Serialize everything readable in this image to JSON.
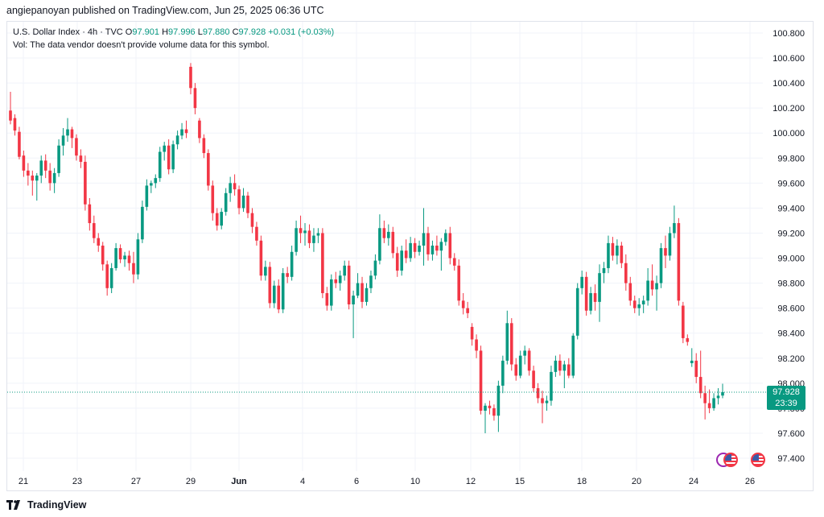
{
  "header": {
    "published_text": "angiepanoyan published on TradingView.com, Jun 25, 2025 06:36 UTC"
  },
  "legend": {
    "symbol": "U.S. Dollar Index · 4h · TVC",
    "o_label": "O",
    "o_value": "97.901",
    "h_label": "H",
    "h_value": "97.996",
    "l_label": "L",
    "l_value": "97.880",
    "c_label": "C",
    "c_value": "97.928",
    "change": "+0.031 (+0.03%)",
    "vol_text": "Vol: The data vendor doesn't provide volume data for this symbol."
  },
  "price_tag": {
    "price": "97.928",
    "countdown": "23:39"
  },
  "footer": {
    "brand": "TradingView"
  },
  "colors": {
    "up": "#089981",
    "down": "#f23645",
    "grid": "#f0f3fa",
    "accent": "#089981"
  },
  "icons": [
    "tradingview-logo-icon",
    "us-flag-icon",
    "economic-event-icon"
  ],
  "chart_data": {
    "type": "candlestick",
    "title": "U.S. Dollar Index · 4h · TVC",
    "ylim": [
      97.3,
      100.9
    ],
    "y_ticks": [
      "100.800",
      "100.600",
      "100.400",
      "100.200",
      "100.000",
      "99.800",
      "99.600",
      "99.400",
      "99.200",
      "99.000",
      "98.800",
      "98.600",
      "98.400",
      "98.200",
      "98.000",
      "97.800",
      "97.600",
      "97.400"
    ],
    "x_ticks": [
      "21",
      "23",
      "27",
      "29",
      "Jun",
      "4",
      "6",
      "10",
      "12",
      "15",
      "18",
      "20",
      "24",
      "26"
    ],
    "last_price": 97.928,
    "grid": true,
    "candles": [
      [
        100.18,
        100.33,
        100.07,
        100.1
      ],
      [
        100.12,
        100.15,
        99.98,
        100.02
      ],
      [
        100.01,
        100.05,
        99.79,
        99.81
      ],
      [
        99.82,
        99.86,
        99.65,
        99.7
      ],
      [
        99.7,
        99.76,
        99.58,
        99.66
      ],
      [
        99.66,
        99.7,
        99.5,
        99.62
      ],
      [
        99.62,
        99.68,
        99.46,
        99.66
      ],
      [
        99.66,
        99.82,
        99.6,
        99.78
      ],
      [
        99.78,
        99.83,
        99.64,
        99.7
      ],
      [
        99.7,
        99.76,
        99.54,
        99.6
      ],
      [
        99.6,
        99.72,
        99.52,
        99.68
      ],
      [
        99.68,
        99.95,
        99.65,
        99.9
      ],
      [
        99.9,
        100.04,
        99.82,
        99.98
      ],
      [
        99.98,
        100.12,
        99.93,
        100.03
      ],
      [
        100.03,
        100.05,
        99.88,
        99.96
      ],
      [
        99.96,
        99.99,
        99.78,
        99.82
      ],
      [
        99.82,
        99.87,
        99.72,
        99.77
      ],
      [
        99.77,
        99.82,
        99.38,
        99.43
      ],
      [
        99.43,
        99.48,
        99.22,
        99.28
      ],
      [
        99.28,
        99.34,
        99.12,
        99.16
      ],
      [
        99.16,
        99.2,
        99.05,
        99.1
      ],
      [
        99.1,
        99.13,
        98.9,
        98.95
      ],
      [
        98.95,
        98.98,
        98.7,
        98.76
      ],
      [
        98.76,
        98.96,
        98.72,
        98.92
      ],
      [
        98.92,
        99.12,
        98.9,
        99.08
      ],
      [
        99.08,
        99.11,
        98.96,
        98.99
      ],
      [
        98.99,
        99.05,
        98.93,
        99.02
      ],
      [
        99.02,
        99.06,
        98.9,
        98.96
      ],
      [
        98.96,
        99.05,
        98.8,
        98.87
      ],
      [
        98.87,
        99.2,
        98.83,
        99.15
      ],
      [
        99.15,
        99.46,
        99.12,
        99.41
      ],
      [
        99.41,
        99.63,
        99.38,
        99.58
      ],
      [
        99.58,
        99.62,
        99.52,
        99.6
      ],
      [
        99.6,
        99.67,
        99.56,
        99.64
      ],
      [
        99.64,
        99.89,
        99.61,
        99.85
      ],
      [
        99.85,
        99.93,
        99.78,
        99.9
      ],
      [
        99.9,
        99.95,
        99.67,
        99.71
      ],
      [
        99.71,
        99.94,
        99.68,
        99.91
      ],
      [
        99.91,
        100.02,
        99.87,
        99.98
      ],
      [
        99.98,
        100.08,
        99.95,
        100.03
      ],
      [
        100.03,
        100.1,
        99.96,
        100.0
      ],
      [
        100.53,
        100.56,
        100.31,
        100.36
      ],
      [
        100.36,
        100.4,
        100.15,
        100.2
      ],
      [
        100.1,
        100.12,
        99.92,
        99.96
      ],
      [
        99.96,
        99.99,
        99.8,
        99.84
      ],
      [
        99.84,
        99.87,
        99.54,
        99.58
      ],
      [
        99.58,
        99.62,
        99.3,
        99.36
      ],
      [
        99.36,
        99.4,
        99.22,
        99.26
      ],
      [
        99.26,
        99.4,
        99.23,
        99.37
      ],
      [
        99.37,
        99.56,
        99.34,
        99.52
      ],
      [
        99.52,
        99.65,
        99.45,
        99.6
      ],
      [
        99.6,
        99.67,
        99.5,
        99.55
      ],
      [
        99.55,
        99.58,
        99.35,
        99.4
      ],
      [
        99.4,
        99.56,
        99.37,
        99.5
      ],
      [
        99.5,
        99.53,
        99.32,
        99.36
      ],
      [
        99.36,
        99.4,
        99.2,
        99.25
      ],
      [
        99.25,
        99.29,
        99.1,
        99.14
      ],
      [
        99.14,
        99.18,
        98.82,
        98.86
      ],
      [
        98.86,
        98.98,
        98.82,
        98.93
      ],
      [
        98.93,
        98.97,
        98.6,
        98.64
      ],
      [
        98.64,
        98.82,
        98.6,
        98.78
      ],
      [
        98.78,
        98.83,
        98.56,
        98.59
      ],
      [
        98.59,
        98.92,
        98.56,
        98.88
      ],
      [
        98.88,
        98.93,
        98.8,
        98.85
      ],
      [
        98.85,
        99.1,
        98.82,
        99.05
      ],
      [
        99.05,
        99.3,
        99.02,
        99.24
      ],
      [
        99.24,
        99.34,
        99.12,
        99.2
      ],
      [
        99.2,
        99.28,
        99.1,
        99.22
      ],
      [
        99.22,
        99.27,
        99.08,
        99.12
      ],
      [
        99.12,
        99.24,
        99.05,
        99.18
      ],
      [
        99.18,
        99.24,
        99.12,
        99.2
      ],
      [
        99.2,
        99.24,
        98.68,
        98.72
      ],
      [
        98.72,
        98.77,
        98.58,
        98.62
      ],
      [
        98.62,
        98.87,
        98.58,
        98.83
      ],
      [
        98.83,
        98.89,
        98.76,
        98.8
      ],
      [
        98.8,
        98.9,
        98.74,
        98.86
      ],
      [
        98.86,
        98.98,
        98.82,
        98.94
      ],
      [
        98.94,
        98.98,
        98.59,
        98.63
      ],
      [
        98.63,
        98.74,
        98.36,
        98.7
      ],
      [
        98.7,
        98.88,
        98.68,
        98.8
      ],
      [
        98.8,
        98.85,
        98.6,
        98.65
      ],
      [
        98.65,
        98.8,
        98.62,
        98.76
      ],
      [
        98.76,
        98.9,
        98.72,
        98.86
      ],
      [
        98.86,
        99.03,
        98.83,
        98.98
      ],
      [
        98.98,
        99.35,
        98.95,
        99.24
      ],
      [
        99.24,
        99.3,
        99.12,
        99.16
      ],
      [
        99.16,
        99.27,
        99.1,
        99.21
      ],
      [
        99.21,
        99.25,
        99.0,
        99.04
      ],
      [
        99.04,
        99.09,
        98.85,
        98.9
      ],
      [
        98.9,
        99.1,
        98.86,
        99.06
      ],
      [
        99.06,
        99.15,
        98.96,
        99.0
      ],
      [
        99.0,
        99.17,
        98.97,
        99.12
      ],
      [
        99.12,
        99.16,
        99.0,
        99.05
      ],
      [
        99.05,
        99.14,
        99.02,
        99.1
      ],
      [
        99.1,
        99.4,
        98.94,
        99.2
      ],
      [
        99.2,
        99.25,
        98.98,
        99.03
      ],
      [
        99.03,
        99.14,
        98.98,
        99.1
      ],
      [
        99.1,
        99.18,
        99.02,
        99.06
      ],
      [
        99.06,
        99.16,
        98.9,
        99.13
      ],
      [
        99.13,
        99.23,
        99.1,
        99.2
      ],
      [
        99.2,
        99.25,
        98.95,
        99.0
      ],
      [
        99.0,
        99.04,
        98.9,
        98.94
      ],
      [
        98.94,
        98.99,
        98.62,
        98.66
      ],
      [
        98.66,
        98.72,
        98.55,
        98.6
      ],
      [
        98.6,
        98.65,
        98.52,
        98.56
      ],
      [
        98.45,
        98.48,
        98.3,
        98.35
      ],
      [
        98.35,
        98.39,
        98.2,
        98.26
      ],
      [
        98.26,
        98.3,
        97.75,
        97.78
      ],
      [
        97.78,
        97.84,
        97.6,
        97.82
      ],
      [
        97.82,
        97.86,
        97.75,
        97.8
      ],
      [
        97.8,
        97.83,
        97.7,
        97.74
      ],
      [
        97.74,
        98.02,
        97.61,
        97.98
      ],
      [
        97.98,
        98.22,
        97.92,
        98.18
      ],
      [
        98.18,
        98.58,
        98.15,
        98.48
      ],
      [
        98.48,
        98.52,
        98.1,
        98.15
      ],
      [
        98.15,
        98.2,
        98.02,
        98.06
      ],
      [
        98.06,
        98.26,
        98.04,
        98.22
      ],
      [
        98.22,
        98.3,
        98.15,
        98.26
      ],
      [
        98.26,
        98.28,
        98.06,
        98.1
      ],
      [
        98.1,
        98.14,
        97.93,
        97.96
      ],
      [
        97.96,
        98.0,
        97.84,
        97.88
      ],
      [
        97.88,
        97.94,
        97.68,
        97.84
      ],
      [
        97.84,
        97.9,
        97.78,
        97.86
      ],
      [
        97.86,
        98.14,
        97.82,
        98.09
      ],
      [
        98.09,
        98.22,
        98.05,
        98.18
      ],
      [
        98.18,
        98.23,
        98.06,
        98.1
      ],
      [
        98.1,
        98.18,
        97.96,
        98.15
      ],
      [
        98.15,
        98.2,
        98.04,
        98.06
      ],
      [
        98.06,
        98.4,
        98.04,
        98.38
      ],
      [
        98.38,
        98.8,
        98.35,
        98.76
      ],
      [
        98.76,
        98.9,
        98.71,
        98.85
      ],
      [
        98.85,
        98.89,
        98.54,
        98.58
      ],
      [
        98.58,
        98.77,
        98.55,
        98.72
      ],
      [
        98.72,
        98.79,
        98.58,
        98.65
      ],
      [
        98.65,
        98.95,
        98.49,
        98.88
      ],
      [
        98.88,
        98.97,
        98.8,
        98.92
      ],
      [
        98.92,
        99.18,
        98.88,
        99.12
      ],
      [
        99.12,
        99.17,
        98.98,
        99.02
      ],
      [
        99.02,
        99.15,
        98.95,
        99.1
      ],
      [
        99.1,
        99.13,
        98.92,
        98.96
      ],
      [
        98.96,
        99.03,
        98.74,
        98.8
      ],
      [
        98.8,
        98.85,
        98.62,
        98.66
      ],
      [
        98.66,
        98.7,
        98.56,
        98.6
      ],
      [
        98.6,
        98.68,
        98.54,
        98.63
      ],
      [
        98.63,
        98.7,
        98.56,
        98.66
      ],
      [
        98.66,
        98.92,
        98.62,
        98.82
      ],
      [
        98.82,
        98.95,
        98.7,
        98.75
      ],
      [
        98.75,
        98.86,
        98.58,
        98.8
      ],
      [
        98.8,
        99.12,
        98.76,
        99.08
      ],
      [
        99.08,
        99.18,
        98.92,
        99.02
      ],
      [
        99.02,
        99.25,
        98.98,
        99.2
      ],
      [
        99.2,
        99.42,
        99.16,
        99.28
      ],
      [
        99.28,
        99.32,
        98.62,
        98.66
      ],
      [
        98.62,
        98.65,
        98.32,
        98.36
      ],
      [
        98.36,
        98.39,
        98.3,
        98.33
      ],
      [
        98.16,
        98.28,
        98.13,
        98.18
      ],
      [
        98.18,
        98.24,
        98.0,
        98.05
      ],
      [
        98.05,
        98.26,
        97.88,
        97.92
      ],
      [
        97.92,
        97.98,
        97.71,
        97.84
      ],
      [
        97.84,
        97.95,
        97.76,
        97.8
      ],
      [
        97.8,
        97.92,
        97.78,
        97.88
      ],
      [
        97.88,
        97.96,
        97.83,
        97.9
      ],
      [
        97.901,
        97.996,
        97.88,
        97.928
      ]
    ]
  }
}
